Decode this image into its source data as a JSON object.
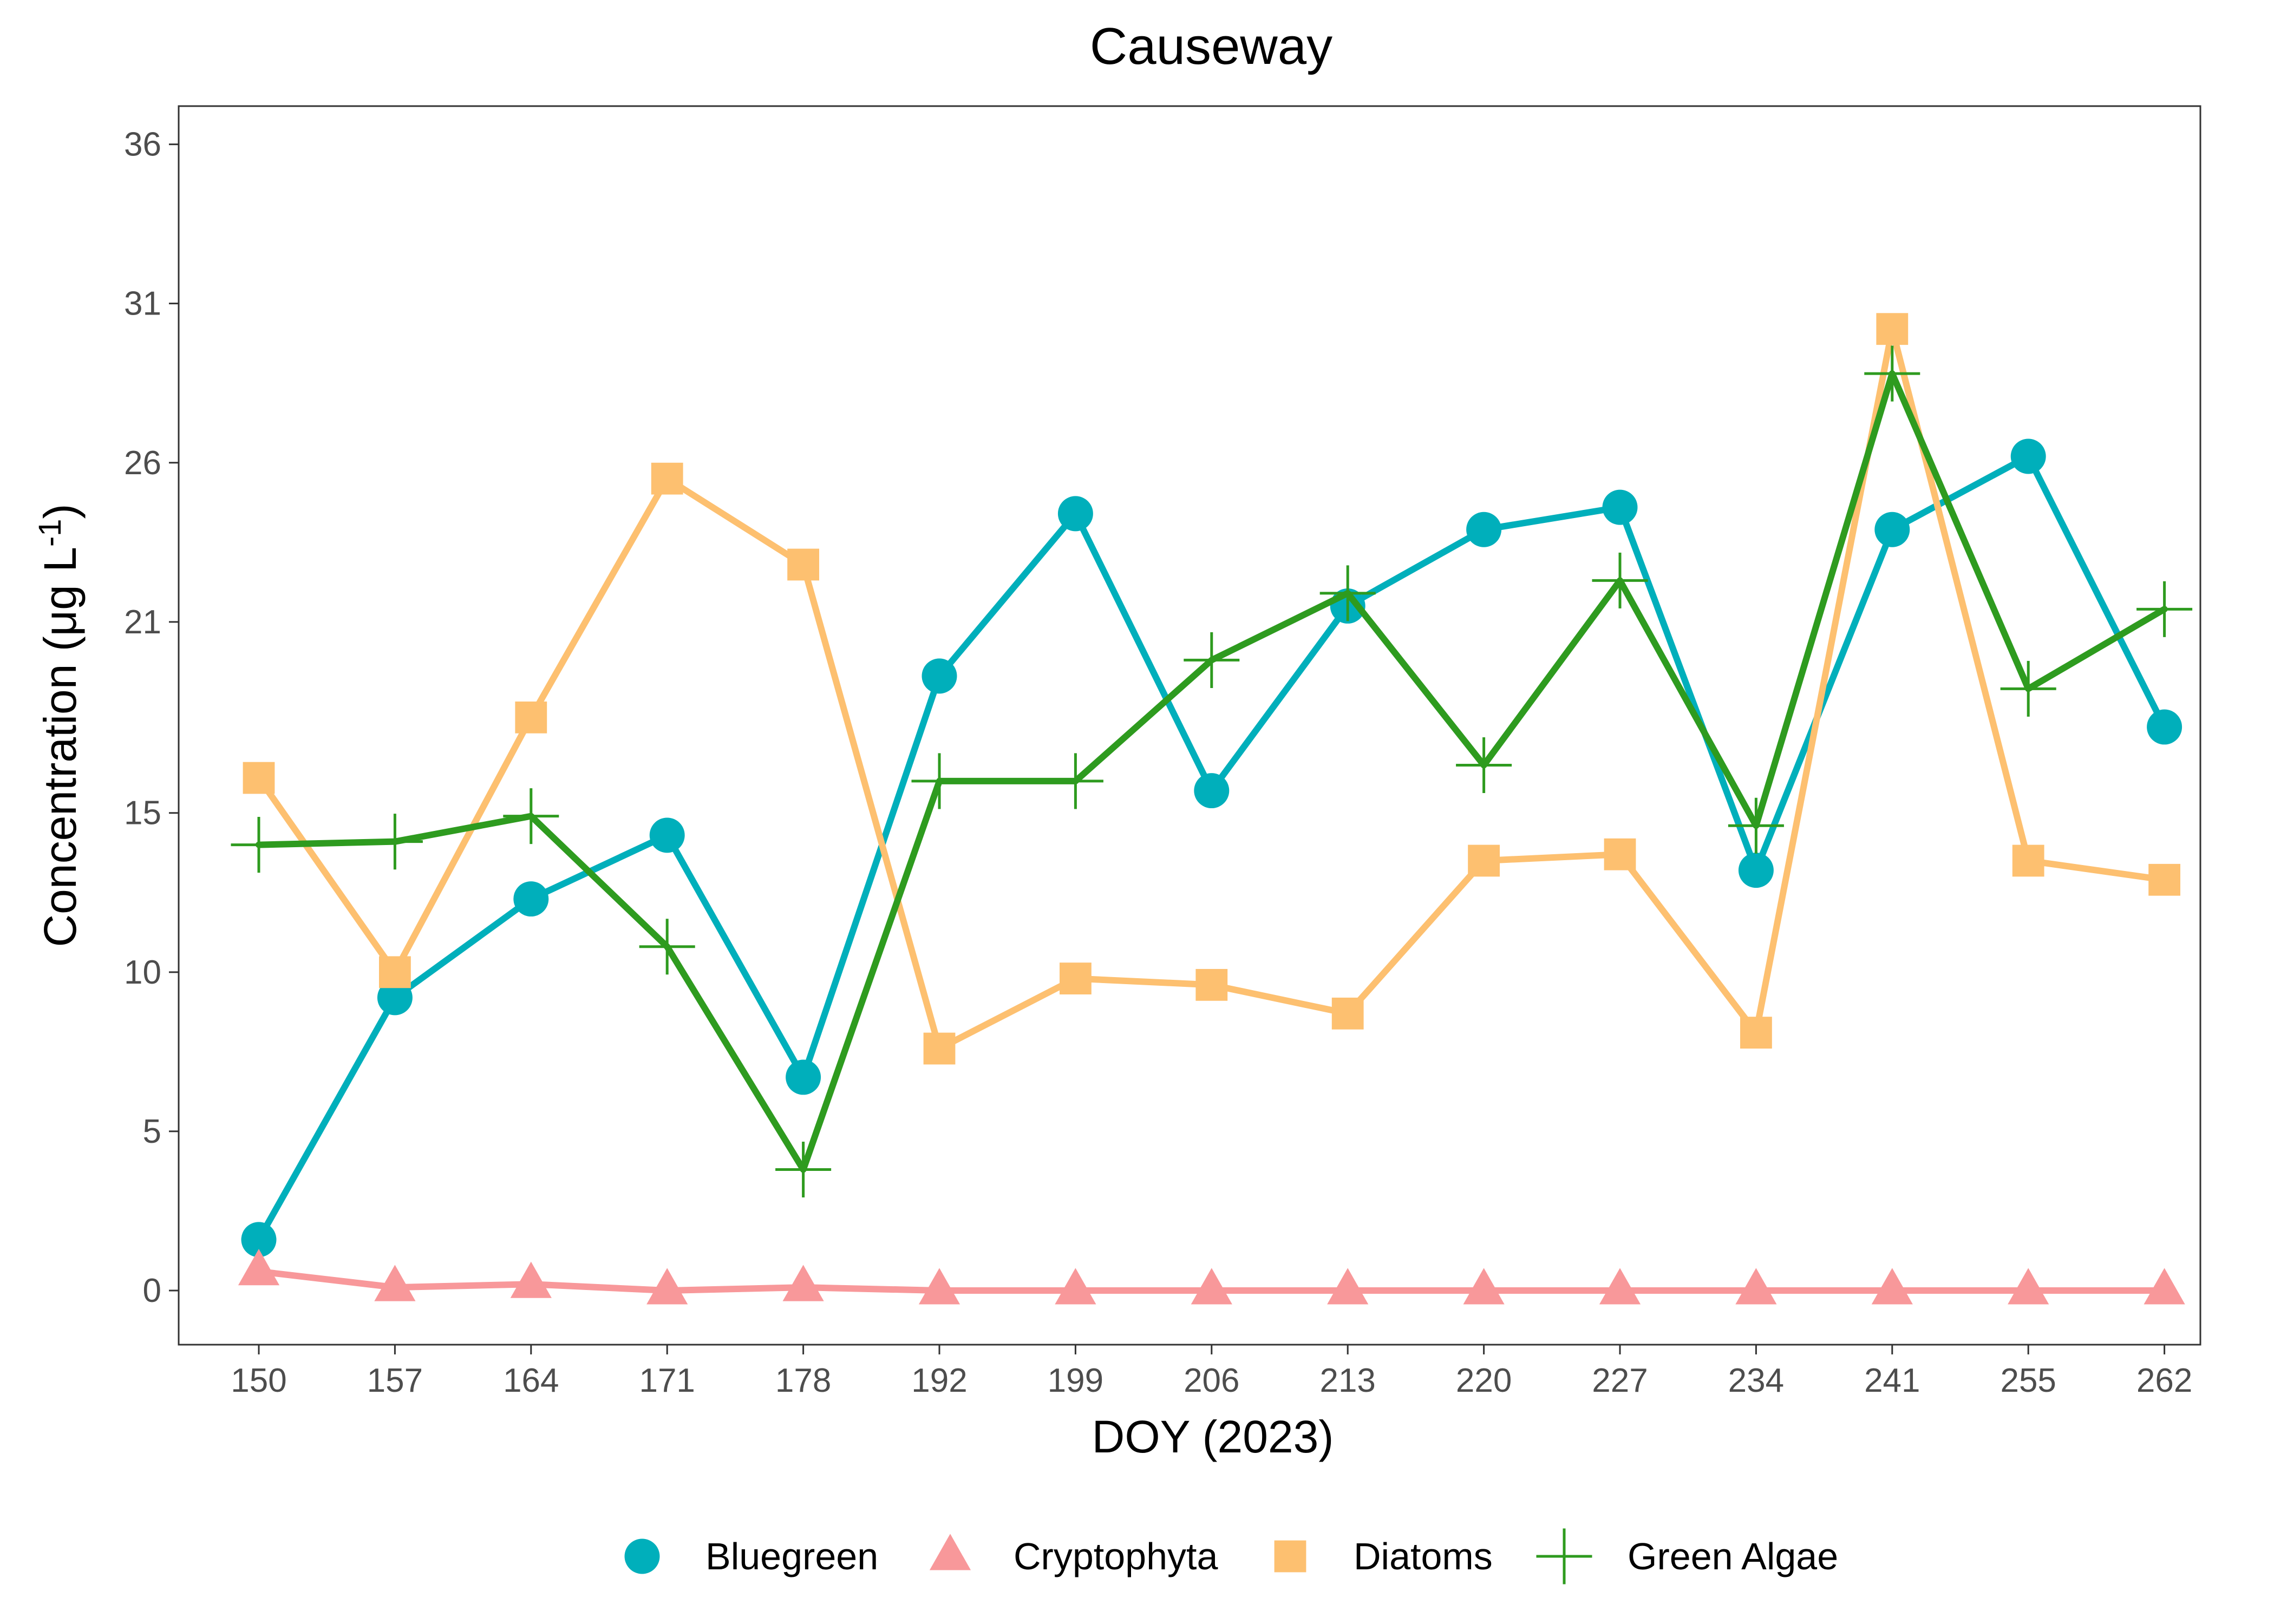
{
  "chart_data": {
    "type": "line",
    "title": "Causeway",
    "xlabel": "DOY (2023)",
    "ylabel": "Concentration (μg L",
    "ylabel_superscript": "-1",
    "ylabel_close": ")",
    "categories": [
      "150",
      "157",
      "164",
      "171",
      "178",
      "192",
      "199",
      "206",
      "213",
      "220",
      "227",
      "234",
      "241",
      "255",
      "262"
    ],
    "y_ticks": [
      0,
      5,
      10,
      15,
      21,
      26,
      31,
      36
    ],
    "ylim": [
      -1.7,
      37.2
    ],
    "grid": false,
    "legend_position": "bottom",
    "series": [
      {
        "name": "Bluegreen",
        "marker": "circle",
        "color": "#00AFBB",
        "values": [
          1.6,
          9.2,
          12.3,
          14.3,
          6.7,
          19.3,
          24.4,
          15.7,
          21.5,
          23.9,
          24.6,
          13.2,
          23.9,
          26.2,
          17.7
        ]
      },
      {
        "name": "Cryptophyta",
        "marker": "triangle",
        "color": "#F8989A",
        "values": [
          0.6,
          0.1,
          0.2,
          0.0,
          0.1,
          0.0,
          0.0,
          0.0,
          0.0,
          0.0,
          0.0,
          0.0,
          0.0,
          0.0,
          0.0
        ]
      },
      {
        "name": "Diatoms",
        "marker": "square",
        "color": "#FDC070",
        "values": [
          16.1,
          10.0,
          18.0,
          25.5,
          22.8,
          7.6,
          9.8,
          9.6,
          8.7,
          13.5,
          13.7,
          8.1,
          30.2,
          13.5,
          12.9
        ]
      },
      {
        "name": "Green Algae",
        "marker": "plus",
        "color": "#2E9B1F",
        "values": [
          14.0,
          14.1,
          14.9,
          10.8,
          3.8,
          16.0,
          16.0,
          19.8,
          21.9,
          16.5,
          22.3,
          14.6,
          28.8,
          18.9,
          21.4
        ]
      }
    ]
  }
}
